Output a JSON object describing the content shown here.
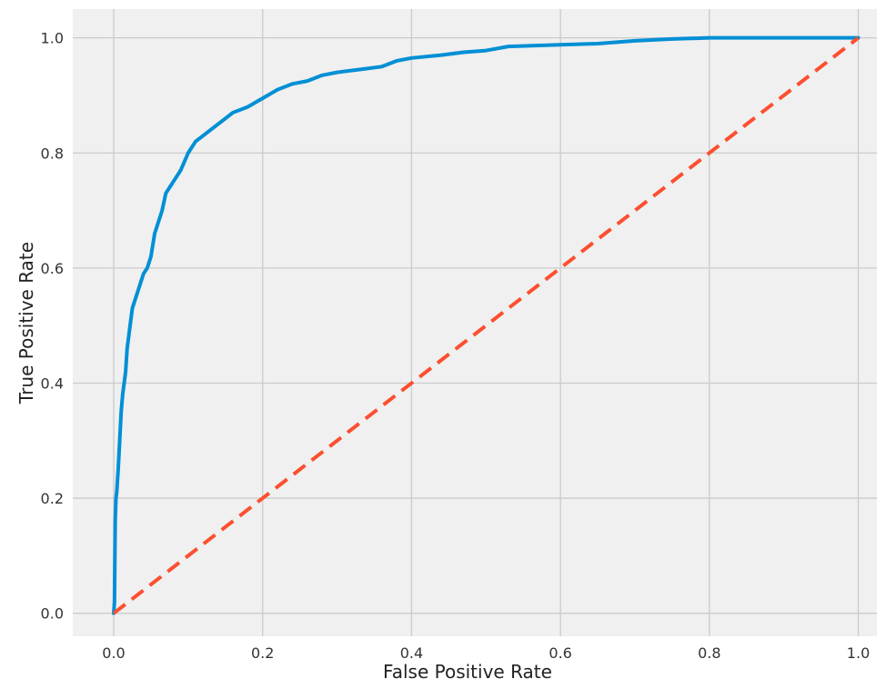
{
  "chart_data": {
    "type": "line",
    "title": "",
    "xlabel": "False Positive Rate",
    "ylabel": "True Positive Rate",
    "xlim": [
      -0.055,
      1.025
    ],
    "ylim": [
      -0.04,
      1.05
    ],
    "grid": true,
    "x_ticks": [
      "0.0",
      "0.2",
      "0.4",
      "0.6",
      "0.8",
      "1.0"
    ],
    "y_ticks": [
      "0.0",
      "0.2",
      "0.4",
      "0.6",
      "0.8",
      "1.0"
    ],
    "x_tick_values": [
      0,
      0.2,
      0.4,
      0.6,
      0.8,
      1.0
    ],
    "y_tick_values": [
      0,
      0.2,
      0.4,
      0.6,
      0.8,
      1.0
    ],
    "colors": {
      "background": "#f0f0f0",
      "grid": "#cbcbcb",
      "roc": "#008fd5",
      "diagonal": "#fc4f30"
    },
    "series": [
      {
        "style": "solid",
        "x": [
          0,
          0.001,
          0.002,
          0.003,
          0.004,
          0.006,
          0.008,
          0.01,
          0.012,
          0.014,
          0.016,
          0.018,
          0.02,
          0.025,
          0.03,
          0.035,
          0.04,
          0.045,
          0.05,
          0.055,
          0.06,
          0.065,
          0.07,
          0.075,
          0.08,
          0.09,
          0.1,
          0.11,
          0.12,
          0.13,
          0.14,
          0.15,
          0.16,
          0.18,
          0.2,
          0.22,
          0.24,
          0.26,
          0.28,
          0.3,
          0.33,
          0.36,
          0.38,
          0.4,
          0.44,
          0.47,
          0.5,
          0.53,
          0.6,
          0.65,
          0.7,
          0.75,
          0.8,
          0.9,
          1.0
        ],
        "y": [
          0,
          0.02,
          0.16,
          0.2,
          0.21,
          0.25,
          0.3,
          0.35,
          0.38,
          0.4,
          0.42,
          0.46,
          0.48,
          0.53,
          0.55,
          0.57,
          0.59,
          0.6,
          0.62,
          0.66,
          0.68,
          0.7,
          0.73,
          0.74,
          0.75,
          0.77,
          0.8,
          0.82,
          0.83,
          0.84,
          0.85,
          0.86,
          0.87,
          0.88,
          0.895,
          0.91,
          0.92,
          0.925,
          0.935,
          0.94,
          0.945,
          0.95,
          0.96,
          0.965,
          0.97,
          0.975,
          0.978,
          0.985,
          0.988,
          0.99,
          0.995,
          0.998,
          1.0,
          1.0,
          1.0
        ]
      },
      {
        "style": "dashed",
        "x": [
          0,
          1
        ],
        "y": [
          0,
          1
        ]
      }
    ]
  }
}
